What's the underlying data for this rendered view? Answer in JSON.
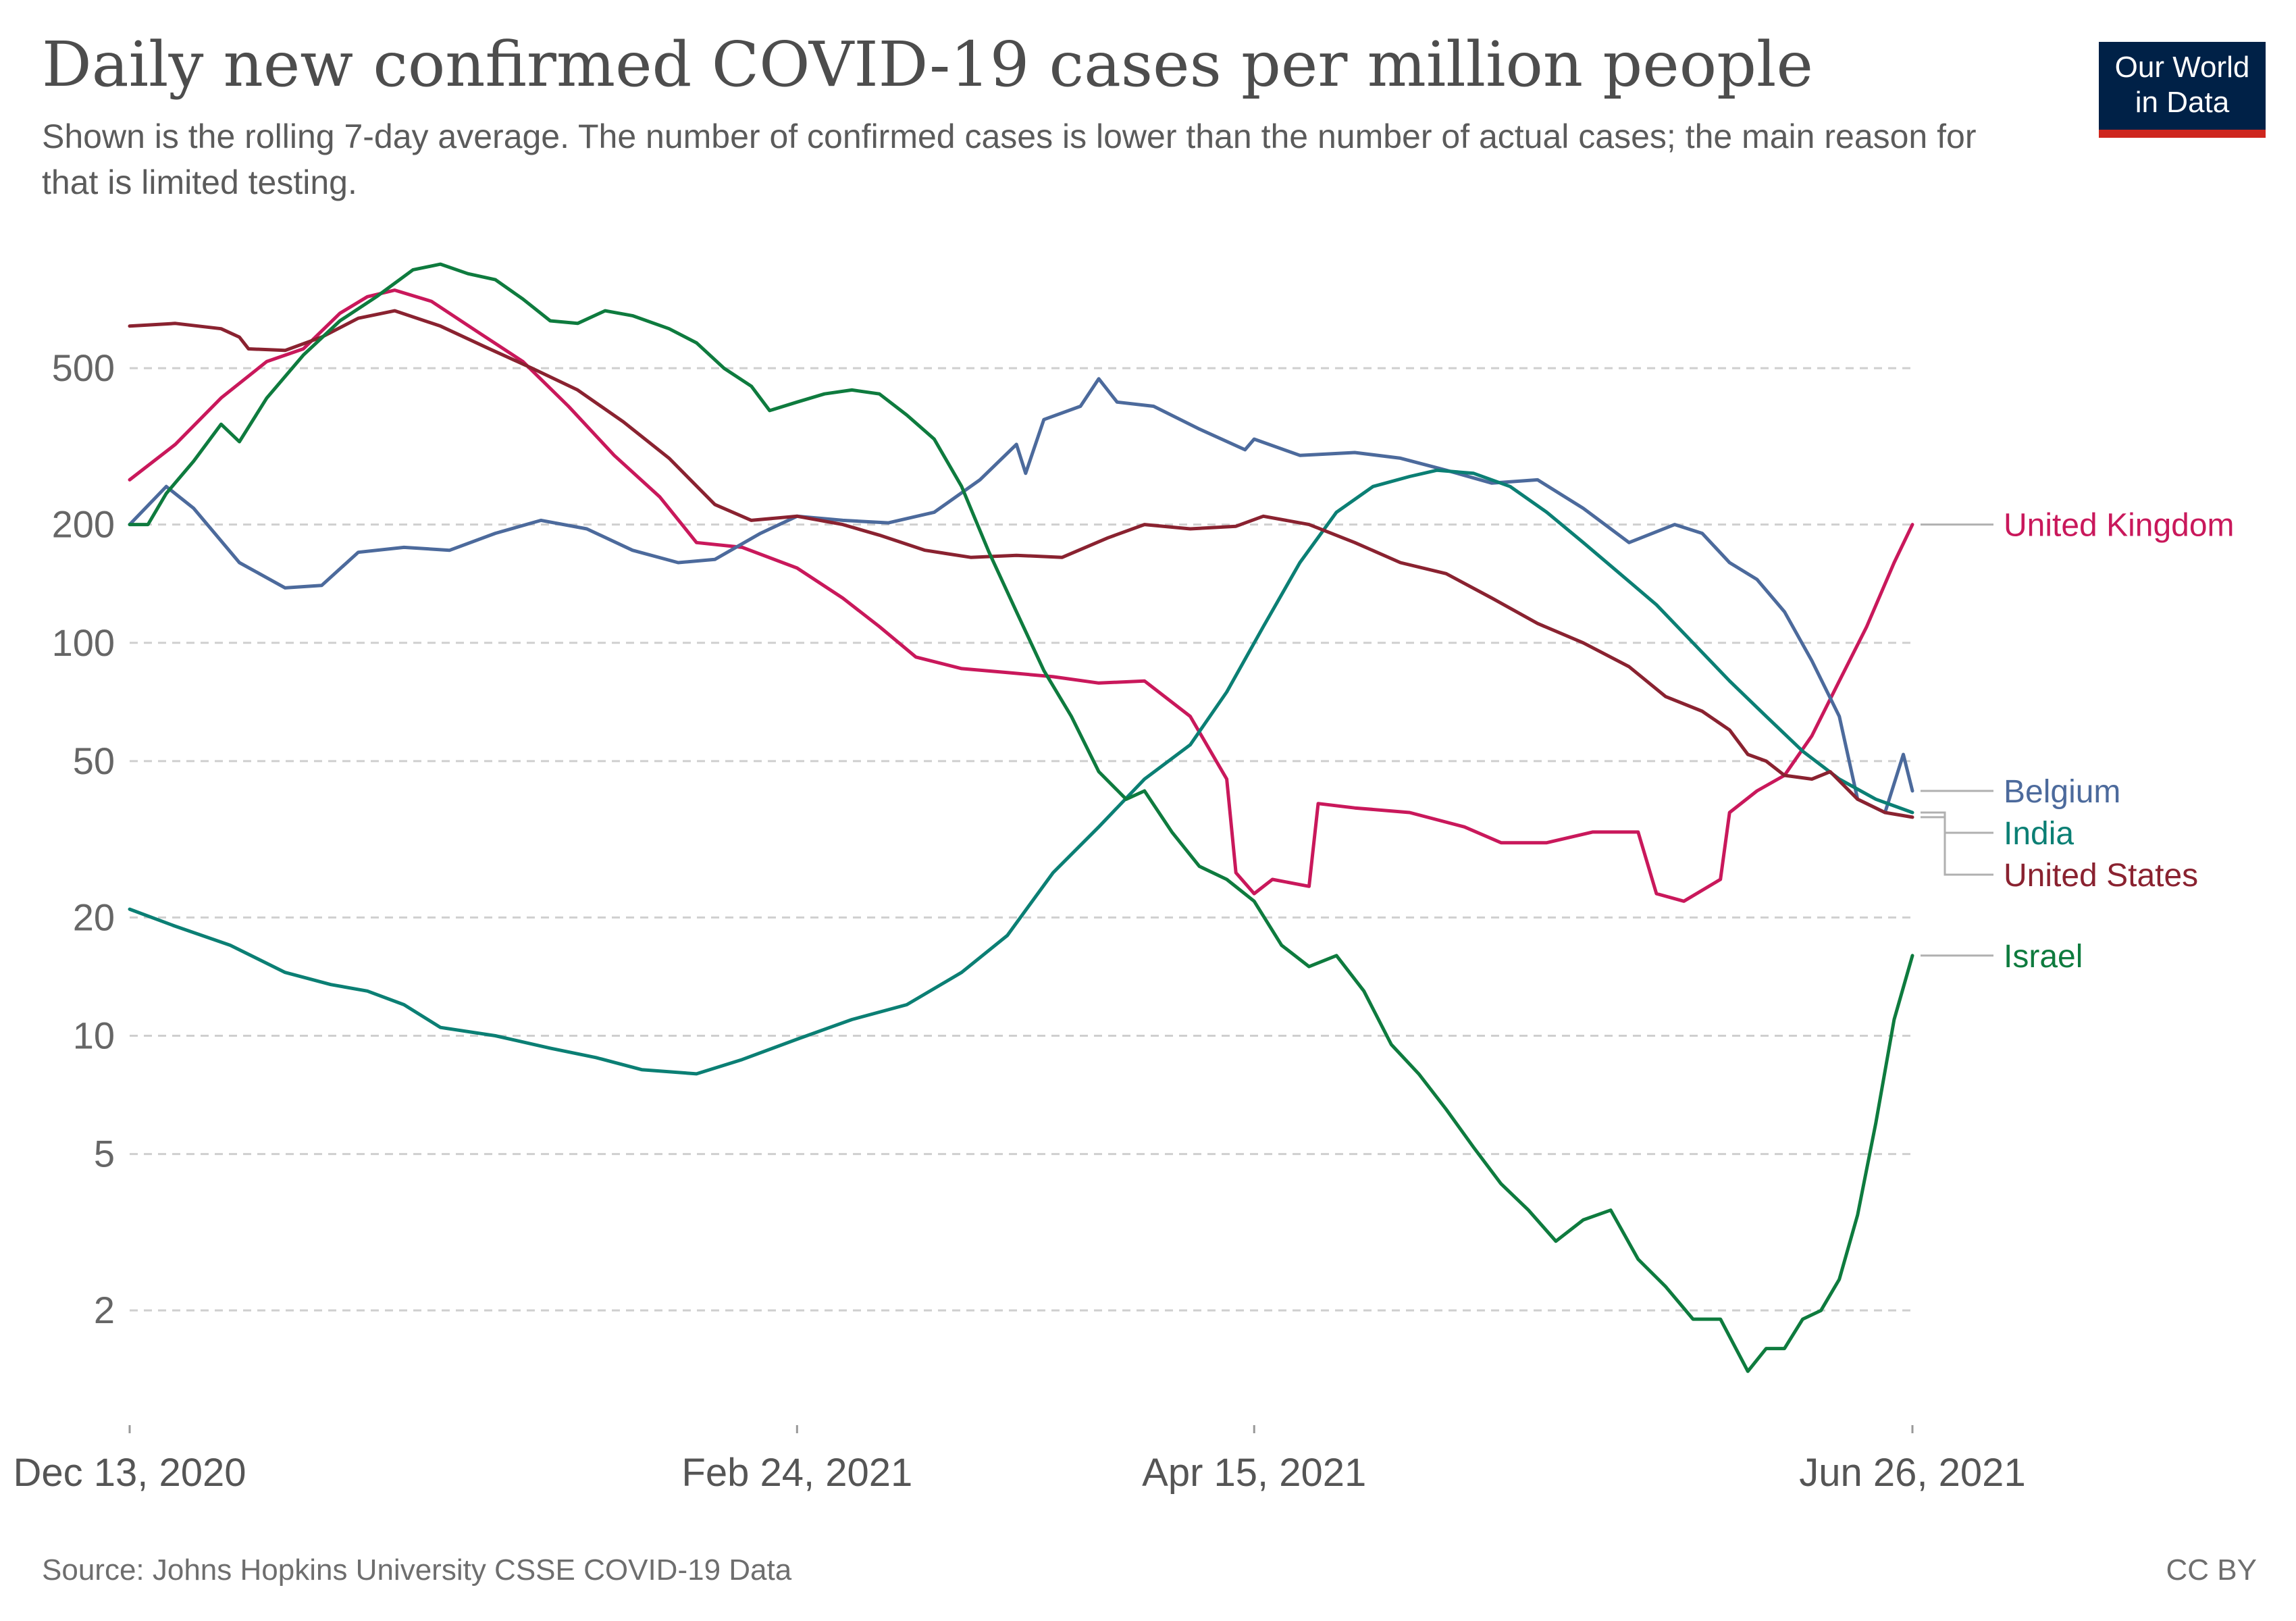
{
  "header": {
    "title": "Daily new confirmed COVID-19 cases per million people",
    "subtitle": "Shown is the rolling 7-day average. The number of confirmed cases is lower than the number of actual cases; the main reason for that is limited testing."
  },
  "logo": {
    "line1": "Our World",
    "line2": "in Data"
  },
  "footer": {
    "source": "Source: Johns Hopkins University CSSE COVID-19 Data",
    "license": "CC BY"
  },
  "chart_data": {
    "type": "line",
    "x_scale": "date",
    "y_scale": "log",
    "title": "Daily new confirmed COVID-19 cases per million people",
    "xlim": [
      "2020-12-13",
      "2021-06-26"
    ],
    "ylim": [
      1.15,
      1000
    ],
    "y_ticks": [
      2,
      5,
      10,
      20,
      50,
      100,
      200,
      500
    ],
    "y_tick_labels": [
      "2",
      "5",
      "10",
      "20",
      "50",
      "100",
      "200",
      "500"
    ],
    "x_ticks": [
      "2020-12-13",
      "2021-02-24",
      "2021-04-15",
      "2021-06-26"
    ],
    "x_tick_labels": [
      "Dec 13, 2020",
      "Feb 24, 2021",
      "Apr 15, 2021",
      "Jun 26, 2021"
    ],
    "grid": "horizontal dashed",
    "legend": "right end labels",
    "series": [
      {
        "name": "United Kingdom",
        "color": "#c9185b",
        "points": [
          [
            "2020-12-13",
            260
          ],
          [
            "2020-12-18",
            320
          ],
          [
            "2020-12-23",
            420
          ],
          [
            "2020-12-28",
            520
          ],
          [
            "2021-01-01",
            560
          ],
          [
            "2021-01-05",
            690
          ],
          [
            "2021-01-08",
            760
          ],
          [
            "2021-01-11",
            790
          ],
          [
            "2021-01-15",
            740
          ],
          [
            "2021-01-20",
            620
          ],
          [
            "2021-01-25",
            520
          ],
          [
            "2021-01-30",
            400
          ],
          [
            "2021-02-04",
            300
          ],
          [
            "2021-02-09",
            235
          ],
          [
            "2021-02-13",
            180
          ],
          [
            "2021-02-18",
            175
          ],
          [
            "2021-02-24",
            155
          ],
          [
            "2021-03-01",
            130
          ],
          [
            "2021-03-05",
            110
          ],
          [
            "2021-03-09",
            92
          ],
          [
            "2021-03-14",
            86
          ],
          [
            "2021-03-19",
            84
          ],
          [
            "2021-03-24",
            82
          ],
          [
            "2021-03-29",
            79
          ],
          [
            "2021-04-03",
            80
          ],
          [
            "2021-04-08",
            65
          ],
          [
            "2021-04-12",
            45
          ],
          [
            "2021-04-13",
            26
          ],
          [
            "2021-04-15",
            23
          ],
          [
            "2021-04-17",
            25
          ],
          [
            "2021-04-21",
            24
          ],
          [
            "2021-04-22",
            39
          ],
          [
            "2021-04-26",
            38
          ],
          [
            "2021-05-02",
            37
          ],
          [
            "2021-05-08",
            34
          ],
          [
            "2021-05-12",
            31
          ],
          [
            "2021-05-17",
            31
          ],
          [
            "2021-05-22",
            33
          ],
          [
            "2021-05-27",
            33
          ],
          [
            "2021-05-29",
            23
          ],
          [
            "2021-06-01",
            22
          ],
          [
            "2021-06-05",
            25
          ],
          [
            "2021-06-06",
            37
          ],
          [
            "2021-06-09",
            42
          ],
          [
            "2021-06-12",
            46
          ],
          [
            "2021-06-15",
            58
          ],
          [
            "2021-06-18",
            80
          ],
          [
            "2021-06-21",
            110
          ],
          [
            "2021-06-24",
            160
          ],
          [
            "2021-06-26",
            200
          ]
        ]
      },
      {
        "name": "Belgium",
        "color": "#4c6a9c",
        "points": [
          [
            "2020-12-13",
            200
          ],
          [
            "2020-12-17",
            250
          ],
          [
            "2020-12-20",
            220
          ],
          [
            "2020-12-25",
            160
          ],
          [
            "2020-12-30",
            138
          ],
          [
            "2021-01-03",
            140
          ],
          [
            "2021-01-07",
            170
          ],
          [
            "2021-01-12",
            175
          ],
          [
            "2021-01-17",
            172
          ],
          [
            "2021-01-22",
            190
          ],
          [
            "2021-01-27",
            205
          ],
          [
            "2021-02-01",
            195
          ],
          [
            "2021-02-06",
            172
          ],
          [
            "2021-02-11",
            160
          ],
          [
            "2021-02-15",
            163
          ],
          [
            "2021-02-20",
            190
          ],
          [
            "2021-02-24",
            210
          ],
          [
            "2021-03-01",
            205
          ],
          [
            "2021-03-06",
            202
          ],
          [
            "2021-03-11",
            215
          ],
          [
            "2021-03-16",
            260
          ],
          [
            "2021-03-20",
            320
          ],
          [
            "2021-03-21",
            270
          ],
          [
            "2021-03-23",
            370
          ],
          [
            "2021-03-27",
            400
          ],
          [
            "2021-03-29",
            470
          ],
          [
            "2021-03-31",
            410
          ],
          [
            "2021-04-04",
            400
          ],
          [
            "2021-04-09",
            350
          ],
          [
            "2021-04-14",
            310
          ],
          [
            "2021-04-15",
            330
          ],
          [
            "2021-04-20",
            300
          ],
          [
            "2021-04-26",
            305
          ],
          [
            "2021-05-01",
            295
          ],
          [
            "2021-05-06",
            275
          ],
          [
            "2021-05-11",
            255
          ],
          [
            "2021-05-16",
            260
          ],
          [
            "2021-05-21",
            220
          ],
          [
            "2021-05-26",
            180
          ],
          [
            "2021-05-31",
            200
          ],
          [
            "2021-06-03",
            190
          ],
          [
            "2021-06-06",
            160
          ],
          [
            "2021-06-09",
            145
          ],
          [
            "2021-06-12",
            120
          ],
          [
            "2021-06-15",
            90
          ],
          [
            "2021-06-18",
            65
          ],
          [
            "2021-06-20",
            40
          ],
          [
            "2021-06-23",
            37
          ],
          [
            "2021-06-25",
            52
          ],
          [
            "2021-06-26",
            42
          ]
        ]
      },
      {
        "name": "India",
        "color": "#0b7f74",
        "points": [
          [
            "2020-12-13",
            21
          ],
          [
            "2020-12-18",
            19
          ],
          [
            "2020-12-24",
            17
          ],
          [
            "2020-12-30",
            14.5
          ],
          [
            "2021-01-04",
            13.5
          ],
          [
            "2021-01-08",
            13
          ],
          [
            "2021-01-12",
            12
          ],
          [
            "2021-01-16",
            10.5
          ],
          [
            "2021-01-22",
            10
          ],
          [
            "2021-01-28",
            9.3
          ],
          [
            "2021-02-02",
            8.8
          ],
          [
            "2021-02-07",
            8.2
          ],
          [
            "2021-02-13",
            8
          ],
          [
            "2021-02-18",
            8.7
          ],
          [
            "2021-02-24",
            9.8
          ],
          [
            "2021-03-02",
            11
          ],
          [
            "2021-03-08",
            12
          ],
          [
            "2021-03-14",
            14.5
          ],
          [
            "2021-03-19",
            18
          ],
          [
            "2021-03-24",
            26
          ],
          [
            "2021-03-29",
            34
          ],
          [
            "2021-04-03",
            45
          ],
          [
            "2021-04-08",
            55
          ],
          [
            "2021-04-12",
            75
          ],
          [
            "2021-04-16",
            110
          ],
          [
            "2021-04-20",
            160
          ],
          [
            "2021-04-24",
            215
          ],
          [
            "2021-04-28",
            250
          ],
          [
            "2021-05-02",
            265
          ],
          [
            "2021-05-05",
            275
          ],
          [
            "2021-05-09",
            270
          ],
          [
            "2021-05-13",
            250
          ],
          [
            "2021-05-17",
            215
          ],
          [
            "2021-05-21",
            180
          ],
          [
            "2021-05-25",
            150
          ],
          [
            "2021-05-29",
            125
          ],
          [
            "2021-06-02",
            100
          ],
          [
            "2021-06-06",
            80
          ],
          [
            "2021-06-10",
            65
          ],
          [
            "2021-06-14",
            53
          ],
          [
            "2021-06-18",
            45
          ],
          [
            "2021-06-22",
            40
          ],
          [
            "2021-06-26",
            37
          ]
        ]
      },
      {
        "name": "United States",
        "color": "#8a2230",
        "points": [
          [
            "2020-12-13",
            640
          ],
          [
            "2020-12-18",
            650
          ],
          [
            "2020-12-23",
            630
          ],
          [
            "2020-12-25",
            600
          ],
          [
            "2020-12-26",
            560
          ],
          [
            "2020-12-30",
            555
          ],
          [
            "2021-01-03",
            600
          ],
          [
            "2021-01-07",
            670
          ],
          [
            "2021-01-11",
            700
          ],
          [
            "2021-01-16",
            640
          ],
          [
            "2021-01-21",
            565
          ],
          [
            "2021-01-26",
            500
          ],
          [
            "2021-01-31",
            440
          ],
          [
            "2021-02-05",
            365
          ],
          [
            "2021-02-10",
            295
          ],
          [
            "2021-02-15",
            225
          ],
          [
            "2021-02-19",
            205
          ],
          [
            "2021-02-24",
            210
          ],
          [
            "2021-03-01",
            200
          ],
          [
            "2021-03-05",
            188
          ],
          [
            "2021-03-10",
            172
          ],
          [
            "2021-03-15",
            165
          ],
          [
            "2021-03-20",
            167
          ],
          [
            "2021-03-25",
            165
          ],
          [
            "2021-03-30",
            185
          ],
          [
            "2021-04-03",
            200
          ],
          [
            "2021-04-08",
            195
          ],
          [
            "2021-04-13",
            198
          ],
          [
            "2021-04-16",
            210
          ],
          [
            "2021-04-21",
            200
          ],
          [
            "2021-04-26",
            180
          ],
          [
            "2021-05-01",
            160
          ],
          [
            "2021-05-06",
            150
          ],
          [
            "2021-05-11",
            130
          ],
          [
            "2021-05-16",
            112
          ],
          [
            "2021-05-21",
            100
          ],
          [
            "2021-05-26",
            87
          ],
          [
            "2021-05-30",
            73
          ],
          [
            "2021-06-03",
            67
          ],
          [
            "2021-06-06",
            60
          ],
          [
            "2021-06-08",
            52
          ],
          [
            "2021-06-10",
            50
          ],
          [
            "2021-06-12",
            46
          ],
          [
            "2021-06-15",
            45
          ],
          [
            "2021-06-17",
            47
          ],
          [
            "2021-06-20",
            40
          ],
          [
            "2021-06-23",
            37
          ],
          [
            "2021-06-26",
            36
          ]
        ]
      },
      {
        "name": "Israel",
        "color": "#0e7b3e",
        "points": [
          [
            "2020-12-13",
            200
          ],
          [
            "2020-12-15",
            200
          ],
          [
            "2020-12-17",
            240
          ],
          [
            "2020-12-20",
            290
          ],
          [
            "2020-12-23",
            360
          ],
          [
            "2020-12-25",
            325
          ],
          [
            "2020-12-28",
            420
          ],
          [
            "2021-01-01",
            540
          ],
          [
            "2021-01-05",
            660
          ],
          [
            "2021-01-09",
            760
          ],
          [
            "2021-01-13",
            890
          ],
          [
            "2021-01-16",
            920
          ],
          [
            "2021-01-19",
            870
          ],
          [
            "2021-01-22",
            840
          ],
          [
            "2021-01-25",
            750
          ],
          [
            "2021-01-28",
            660
          ],
          [
            "2021-01-31",
            650
          ],
          [
            "2021-02-03",
            700
          ],
          [
            "2021-02-06",
            680
          ],
          [
            "2021-02-10",
            630
          ],
          [
            "2021-02-13",
            580
          ],
          [
            "2021-02-16",
            500
          ],
          [
            "2021-02-19",
            450
          ],
          [
            "2021-02-21",
            390
          ],
          [
            "2021-02-24",
            410
          ],
          [
            "2021-02-27",
            430
          ],
          [
            "2021-03-02",
            440
          ],
          [
            "2021-03-05",
            430
          ],
          [
            "2021-03-08",
            380
          ],
          [
            "2021-03-11",
            330
          ],
          [
            "2021-03-14",
            250
          ],
          [
            "2021-03-17",
            170
          ],
          [
            "2021-03-20",
            120
          ],
          [
            "2021-03-23",
            85
          ],
          [
            "2021-03-26",
            65
          ],
          [
            "2021-03-29",
            47
          ],
          [
            "2021-04-01",
            40
          ],
          [
            "2021-04-03",
            42
          ],
          [
            "2021-04-06",
            33
          ],
          [
            "2021-04-09",
            27
          ],
          [
            "2021-04-12",
            25
          ],
          [
            "2021-04-15",
            22
          ],
          [
            "2021-04-18",
            17
          ],
          [
            "2021-04-21",
            15
          ],
          [
            "2021-04-24",
            16
          ],
          [
            "2021-04-27",
            13
          ],
          [
            "2021-04-30",
            9.5
          ],
          [
            "2021-05-03",
            8
          ],
          [
            "2021-05-06",
            6.5
          ],
          [
            "2021-05-09",
            5.2
          ],
          [
            "2021-05-12",
            4.2
          ],
          [
            "2021-05-15",
            3.6
          ],
          [
            "2021-05-18",
            3
          ],
          [
            "2021-05-21",
            3.4
          ],
          [
            "2021-05-24",
            3.6
          ],
          [
            "2021-05-27",
            2.7
          ],
          [
            "2021-05-30",
            2.3
          ],
          [
            "2021-06-02",
            1.9
          ],
          [
            "2021-06-05",
            1.9
          ],
          [
            "2021-06-08",
            1.4
          ],
          [
            "2021-06-10",
            1.6
          ],
          [
            "2021-06-12",
            1.6
          ],
          [
            "2021-06-14",
            1.9
          ],
          [
            "2021-06-16",
            2
          ],
          [
            "2021-06-18",
            2.4
          ],
          [
            "2021-06-20",
            3.5
          ],
          [
            "2021-06-22",
            6
          ],
          [
            "2021-06-24",
            11
          ],
          [
            "2021-06-26",
            16
          ]
        ]
      }
    ]
  }
}
